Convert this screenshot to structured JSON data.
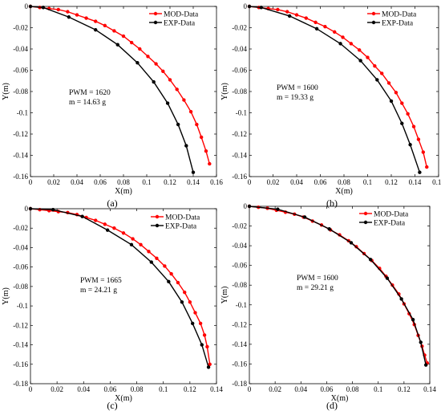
{
  "chart_data": [
    {
      "type": "line",
      "caption": "(a)",
      "xlabel": "X(m)",
      "ylabel": "Y(m)",
      "xlim": [
        0,
        0.16
      ],
      "ylim": [
        -0.16,
        0
      ],
      "xticks": [
        "0",
        "0.02",
        "0.04",
        "0.06",
        "0.08",
        "0.1",
        "0.12",
        "0.14",
        "0.16"
      ],
      "yticks": [
        "0",
        "-0.02",
        "-0.04",
        "-0.06",
        "-0.08",
        "-0.1",
        "-0.12",
        "-0.14",
        "-0.16"
      ],
      "xtick_values": [
        0,
        0.02,
        0.04,
        0.06,
        0.08,
        0.1,
        0.12,
        0.14,
        0.16
      ],
      "ytick_values": [
        0,
        -0.02,
        -0.04,
        -0.06,
        -0.08,
        -0.1,
        -0.12,
        -0.14,
        -0.16
      ],
      "annotation": [
        "PWM = 1620",
        "m = 14.63 g"
      ],
      "legend": "top-right",
      "series": [
        {
          "name": "MOD-Data",
          "color": "#ff0000",
          "x": [
            0,
            0.008,
            0.016,
            0.024,
            0.032,
            0.04,
            0.048,
            0.056,
            0.064,
            0.072,
            0.08,
            0.087,
            0.094,
            0.101,
            0.108,
            0.114,
            0.12,
            0.126,
            0.132,
            0.138,
            0.143,
            0.147,
            0.151,
            0.154
          ],
          "y": [
            0,
            -0.001,
            -0.002,
            -0.003,
            -0.005,
            -0.008,
            -0.011,
            -0.014,
            -0.018,
            -0.023,
            -0.028,
            -0.034,
            -0.04,
            -0.047,
            -0.054,
            -0.061,
            -0.069,
            -0.078,
            -0.088,
            -0.099,
            -0.111,
            -0.123,
            -0.136,
            -0.148
          ]
        },
        {
          "name": "EXP-Data",
          "color": "#000000",
          "x": [
            0,
            0.011,
            0.033,
            0.056,
            0.075,
            0.092,
            0.106,
            0.118,
            0.127,
            0.134,
            0.14
          ],
          "y": [
            0,
            -0.001,
            -0.01,
            -0.022,
            -0.036,
            -0.053,
            -0.071,
            -0.091,
            -0.111,
            -0.131,
            -0.156
          ]
        }
      ]
    },
    {
      "type": "line",
      "caption": "(b)",
      "xlabel": "X(m)",
      "ylabel": "Y(m)",
      "xlim": [
        0,
        0.16
      ],
      "ylim": [
        -0.16,
        0
      ],
      "xticks": [
        "0",
        "0.02",
        "0.04",
        "0.06",
        "0.08",
        "0.1",
        "0.12",
        "0.14",
        "0.16"
      ],
      "yticks": [
        "0",
        "-0.02",
        "-0.04",
        "-0.06",
        "-0.08",
        "-0.1",
        "-0.12",
        "-0.14",
        "-0.16"
      ],
      "xtick_values": [
        0,
        0.02,
        0.04,
        0.06,
        0.08,
        0.1,
        0.12,
        0.14,
        0.16
      ],
      "ytick_values": [
        0,
        -0.02,
        -0.04,
        -0.06,
        -0.08,
        -0.1,
        -0.12,
        -0.14,
        -0.16
      ],
      "annotation": [
        "PWM = 1600",
        "m = 19.33 g"
      ],
      "legend": "top-right",
      "series": [
        {
          "name": "MOD-Data",
          "color": "#ff0000",
          "x": [
            0,
            0.008,
            0.016,
            0.024,
            0.032,
            0.04,
            0.048,
            0.056,
            0.064,
            0.072,
            0.079,
            0.086,
            0.093,
            0.1,
            0.106,
            0.112,
            0.118,
            0.124,
            0.129,
            0.134,
            0.139,
            0.143,
            0.147,
            0.15
          ],
          "y": [
            0,
            -0.001,
            -0.002,
            -0.003,
            -0.005,
            -0.008,
            -0.011,
            -0.015,
            -0.019,
            -0.024,
            -0.029,
            -0.035,
            -0.041,
            -0.048,
            -0.056,
            -0.063,
            -0.072,
            -0.081,
            -0.091,
            -0.101,
            -0.113,
            -0.125,
            -0.137,
            -0.151
          ]
        },
        {
          "name": "EXP-Data",
          "color": "#000000",
          "x": [
            0,
            0.01,
            0.034,
            0.057,
            0.077,
            0.094,
            0.108,
            0.12,
            0.129,
            0.136,
            0.144
          ],
          "y": [
            0,
            -0.001,
            -0.009,
            -0.021,
            -0.035,
            -0.051,
            -0.069,
            -0.089,
            -0.11,
            -0.13,
            -0.156
          ]
        }
      ]
    },
    {
      "type": "line",
      "caption": "(c)",
      "xlabel": "X(m)",
      "ylabel": "Y(m)",
      "xlim": [
        0,
        0.14
      ],
      "ylim": [
        -0.18,
        0
      ],
      "xticks": [
        "0",
        "0.02",
        "0.04",
        "0.06",
        "0.08",
        "0.1",
        "0.12",
        "0.14"
      ],
      "yticks": [
        "0",
        "-0.02",
        "-0.04",
        "-0.06",
        "-0.08",
        "-0.1",
        "-0.12",
        "-0.14",
        "-0.16",
        "-0.18"
      ],
      "xtick_values": [
        0,
        0.02,
        0.04,
        0.06,
        0.08,
        0.1,
        0.12,
        0.14
      ],
      "ytick_values": [
        0,
        -0.02,
        -0.04,
        -0.06,
        -0.08,
        -0.1,
        -0.12,
        -0.14,
        -0.16,
        -0.18
      ],
      "annotation": [
        "PWM = 1665",
        "m = 24.21 g"
      ],
      "legend": "top-right",
      "series": [
        {
          "name": "MOD-Data",
          "color": "#ff0000",
          "x": [
            0,
            0.007,
            0.014,
            0.021,
            0.028,
            0.035,
            0.042,
            0.049,
            0.056,
            0.063,
            0.07,
            0.077,
            0.083,
            0.089,
            0.095,
            0.101,
            0.106,
            0.111,
            0.116,
            0.12,
            0.124,
            0.128,
            0.131,
            0.133,
            0.135
          ],
          "y": [
            0,
            -0.001,
            -0.002,
            -0.003,
            -0.004,
            -0.006,
            -0.009,
            -0.012,
            -0.016,
            -0.02,
            -0.025,
            -0.031,
            -0.037,
            -0.044,
            -0.051,
            -0.059,
            -0.067,
            -0.076,
            -0.086,
            -0.096,
            -0.107,
            -0.118,
            -0.13,
            -0.142,
            -0.16
          ]
        },
        {
          "name": "EXP-Data",
          "color": "#000000",
          "x": [
            0,
            0.017,
            0.039,
            0.058,
            0.076,
            0.091,
            0.104,
            0.114,
            0.122,
            0.129,
            0.134
          ],
          "y": [
            0,
            -0.001,
            -0.008,
            -0.022,
            -0.037,
            -0.055,
            -0.075,
            -0.096,
            -0.118,
            -0.14,
            -0.163
          ]
        }
      ]
    },
    {
      "type": "line",
      "caption": "(d)",
      "xlabel": "X(m)",
      "ylabel": "Y(m)",
      "xlim": [
        0,
        0.14
      ],
      "ylim": [
        -0.18,
        0
      ],
      "xticks": [
        "0",
        "0.02",
        "0.04",
        "0.06",
        "0.08",
        "0.1",
        "0.12",
        "0.14"
      ],
      "yticks": [
        "0",
        "-0.02",
        "-0.04",
        "-0.06",
        "-0.08",
        "-0.1",
        "-0.12",
        "-0.14",
        "-0.16",
        "-0.18"
      ],
      "xtick_values": [
        0,
        0.02,
        0.04,
        0.06,
        0.08,
        0.1,
        0.12,
        0.14
      ],
      "ytick_values": [
        0,
        -0.02,
        -0.04,
        -0.06,
        -0.08,
        -0.1,
        -0.12,
        -0.14,
        -0.16,
        -0.18
      ],
      "annotation": [
        "PWM = 1600",
        "m = 29.21 g"
      ],
      "legend": "top-right",
      "series": [
        {
          "name": "MOD-Data",
          "color": "#ff0000",
          "x": [
            0,
            0.007,
            0.014,
            0.021,
            0.028,
            0.035,
            0.042,
            0.049,
            0.056,
            0.063,
            0.07,
            0.077,
            0.083,
            0.089,
            0.095,
            0.101,
            0.106,
            0.111,
            0.116,
            0.12,
            0.124,
            0.128,
            0.131,
            0.134,
            0.136,
            0.138
          ],
          "y": [
            0,
            -0.001,
            -0.002,
            -0.004,
            -0.006,
            -0.008,
            -0.011,
            -0.015,
            -0.019,
            -0.024,
            -0.029,
            -0.035,
            -0.041,
            -0.048,
            -0.055,
            -0.063,
            -0.071,
            -0.08,
            -0.089,
            -0.099,
            -0.109,
            -0.12,
            -0.131,
            -0.142,
            -0.151,
            -0.159
          ]
        },
        {
          "name": "EXP-Data",
          "color": "#000000",
          "x": [
            0,
            0.022,
            0.043,
            0.062,
            0.079,
            0.094,
            0.107,
            0.118,
            0.127,
            0.133,
            0.137
          ],
          "y": [
            0,
            -0.003,
            -0.011,
            -0.023,
            -0.037,
            -0.054,
            -0.073,
            -0.094,
            -0.115,
            -0.138,
            -0.161
          ]
        }
      ]
    }
  ]
}
